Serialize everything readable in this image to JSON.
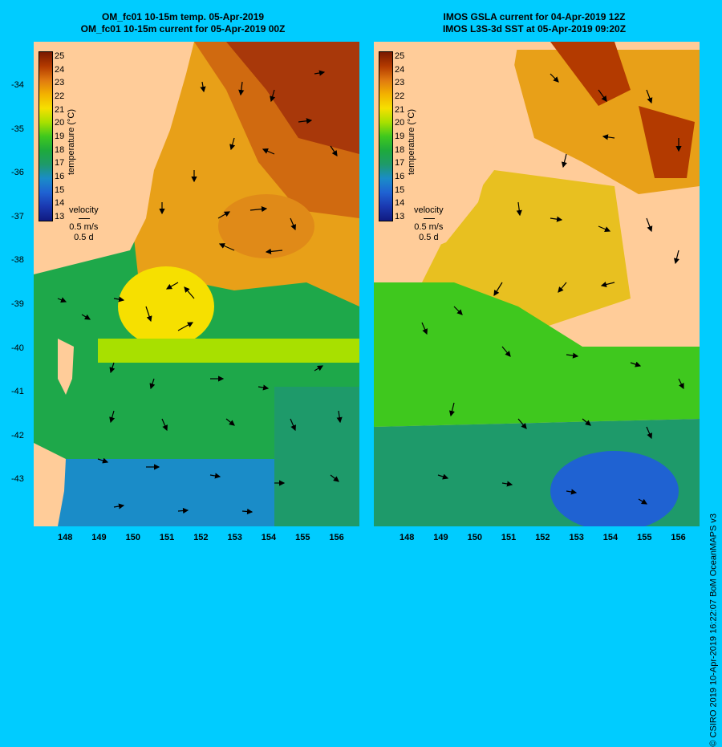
{
  "left_panel": {
    "title_line1": "OM_fc01 10-15m temp. 05-Apr-2019",
    "title_line2": "OM_fc01 10-15m current for 05-Apr-2019 00Z"
  },
  "right_panel": {
    "title_line1": "IMOS GSLA current for 04-Apr-2019 12Z",
    "title_line2": "IMOS L3S-3d SST at 05-Apr-2019 09:20Z"
  },
  "colorbar": {
    "label": "temperature (°C)",
    "ticks": [
      "25",
      "24",
      "23",
      "22",
      "21",
      "20",
      "19",
      "18",
      "17",
      "16",
      "15",
      "14",
      "13"
    ],
    "colors": [
      "#7a1a00",
      "#b33a00",
      "#e07a10",
      "#f3b200",
      "#f6e000",
      "#a8e000",
      "#3fc81e",
      "#1eaa3c",
      "#1e9a6a",
      "#1a8cc8",
      "#1f62d2",
      "#1a38b0",
      "#101a80"
    ]
  },
  "velocity_legend": {
    "title": "velocity",
    "speed": "0.5 m/s",
    "duration": "0.5 d"
  },
  "axes": {
    "lat_labels": [
      "-34",
      "-35",
      "-36",
      "-37",
      "-38",
      "-39",
      "-40",
      "-41",
      "-42",
      "-43"
    ],
    "lon_labels": [
      "148",
      "149",
      "150",
      "151",
      "152",
      "153",
      "154",
      "155",
      "156"
    ]
  },
  "credit": "© CSIRO 2019   10-Apr-2019 16:22:07 BoM OceanMAPS v3",
  "colors": {
    "background": "#00ccff",
    "land": "#ffcc99"
  }
}
